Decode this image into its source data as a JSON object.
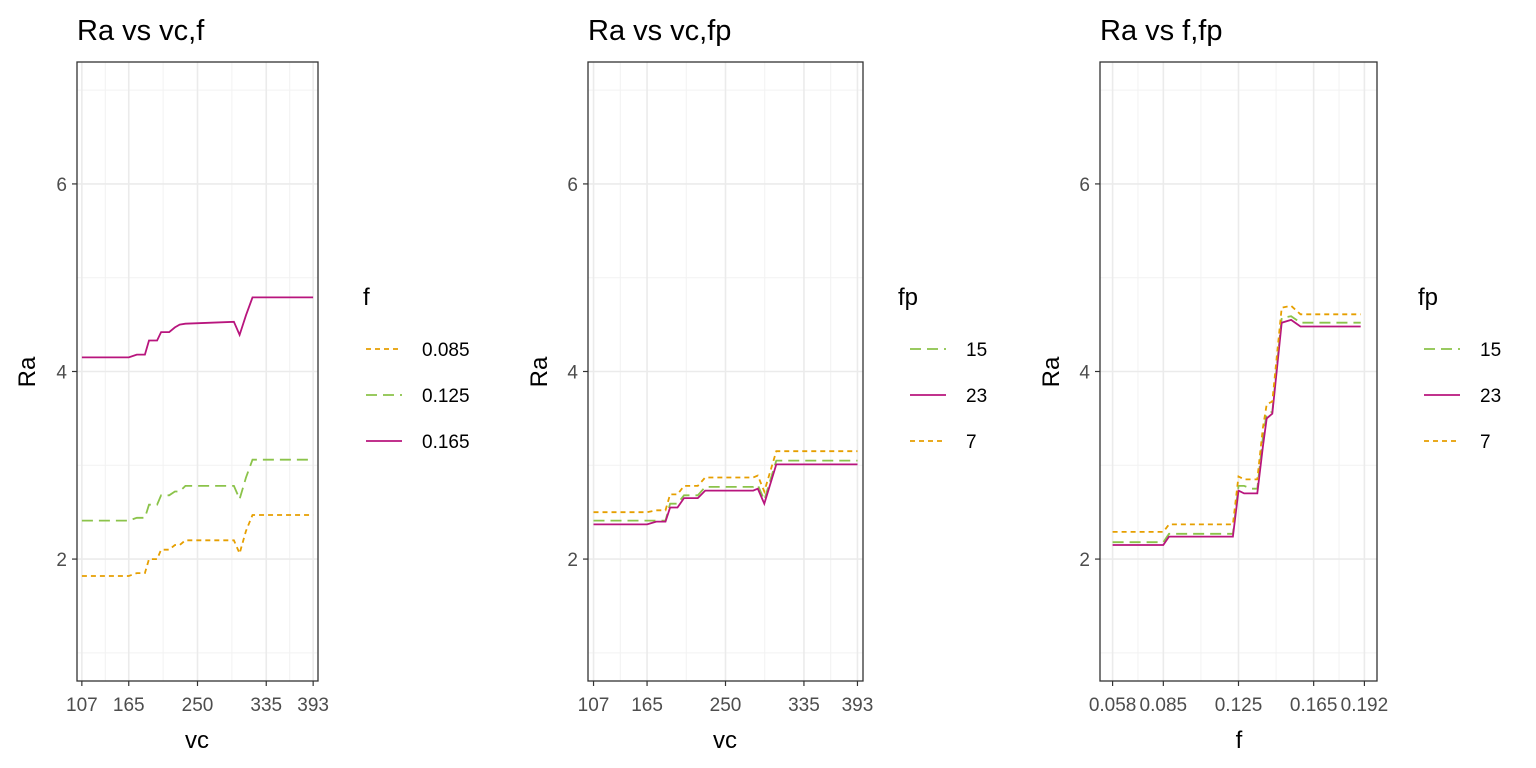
{
  "chart_data": [
    {
      "type": "line",
      "title": "Ra vs vc,f",
      "xlabel": "vc",
      "ylabel": "Ra",
      "xlim": [
        101,
        399
      ],
      "ylim": [
        0.7,
        7.3
      ],
      "x_ticks": [
        107,
        165,
        250,
        335,
        393
      ],
      "x_tick_labels": [
        "107",
        "165",
        "250",
        "335",
        "393"
      ],
      "y_ticks": [
        2,
        4,
        6
      ],
      "y_tick_labels": [
        "2",
        "4",
        "6"
      ],
      "grid": true,
      "legend": {
        "title": "f",
        "position": "right",
        "entries": [
          {
            "label": "0.085",
            "color": "#E69F00",
            "dash": "short"
          },
          {
            "label": "0.125",
            "color": "#8BC34A",
            "dash": "long"
          },
          {
            "label": "0.165",
            "color": "#B8157D",
            "dash": "solid"
          }
        ]
      },
      "series": [
        {
          "name": "0.085",
          "color": "#E69F00",
          "dash": "short",
          "points": [
            [
              107,
              1.82
            ],
            [
              165,
              1.82
            ],
            [
              175,
              1.85
            ],
            [
              185,
              1.85
            ],
            [
              190,
              2.0
            ],
            [
              200,
              2.0
            ],
            [
              205,
              2.1
            ],
            [
              215,
              2.1
            ],
            [
              222,
              2.15
            ],
            [
              228,
              2.15
            ],
            [
              235,
              2.2
            ],
            [
              295,
              2.2
            ],
            [
              302,
              2.06
            ],
            [
              310,
              2.3
            ],
            [
              318,
              2.47
            ],
            [
              393,
              2.47
            ]
          ]
        },
        {
          "name": "0.125",
          "color": "#8BC34A",
          "dash": "long",
          "points": [
            [
              107,
              2.41
            ],
            [
              165,
              2.41
            ],
            [
              175,
              2.44
            ],
            [
              185,
              2.44
            ],
            [
              190,
              2.58
            ],
            [
              200,
              2.58
            ],
            [
              205,
              2.68
            ],
            [
              215,
              2.68
            ],
            [
              222,
              2.72
            ],
            [
              228,
              2.72
            ],
            [
              235,
              2.78
            ],
            [
              295,
              2.78
            ],
            [
              302,
              2.64
            ],
            [
              310,
              2.87
            ],
            [
              318,
              3.06
            ],
            [
              393,
              3.06
            ]
          ]
        },
        {
          "name": "0.165",
          "color": "#B8157D",
          "dash": "solid",
          "points": [
            [
              107,
              4.15
            ],
            [
              165,
              4.15
            ],
            [
              175,
              4.18
            ],
            [
              185,
              4.18
            ],
            [
              190,
              4.33
            ],
            [
              200,
              4.33
            ],
            [
              205,
              4.42
            ],
            [
              215,
              4.42
            ],
            [
              222,
              4.47
            ],
            [
              228,
              4.5
            ],
            [
              235,
              4.51
            ],
            [
              295,
              4.53
            ],
            [
              302,
              4.39
            ],
            [
              310,
              4.6
            ],
            [
              318,
              4.79
            ],
            [
              393,
              4.79
            ]
          ]
        }
      ]
    },
    {
      "type": "line",
      "title": "Ra vs vc,fp",
      "xlabel": "vc",
      "ylabel": "Ra",
      "xlim": [
        101,
        399
      ],
      "ylim": [
        0.7,
        7.3
      ],
      "x_ticks": [
        107,
        165,
        250,
        335,
        393
      ],
      "x_tick_labels": [
        "107",
        "165",
        "250",
        "335",
        "393"
      ],
      "y_ticks": [
        2,
        4,
        6
      ],
      "y_tick_labels": [
        "2",
        "4",
        "6"
      ],
      "grid": true,
      "legend": {
        "title": "fp",
        "position": "right",
        "entries": [
          {
            "label": "15",
            "color": "#8BC34A",
            "dash": "long"
          },
          {
            "label": "23",
            "color": "#B8157D",
            "dash": "solid"
          },
          {
            "label": "7",
            "color": "#E69F00",
            "dash": "short"
          }
        ]
      },
      "series": [
        {
          "name": "15",
          "color": "#8BC34A",
          "dash": "long",
          "points": [
            [
              107,
              2.41
            ],
            [
              165,
              2.41
            ],
            [
              175,
              2.41
            ],
            [
              185,
              2.41
            ],
            [
              190,
              2.59
            ],
            [
              198,
              2.59
            ],
            [
              205,
              2.68
            ],
            [
              220,
              2.68
            ],
            [
              228,
              2.77
            ],
            [
              280,
              2.77
            ],
            [
              285,
              2.79
            ],
            [
              292,
              2.63
            ],
            [
              305,
              3.05
            ],
            [
              393,
              3.05
            ]
          ]
        },
        {
          "name": "23",
          "color": "#B8157D",
          "dash": "solid",
          "points": [
            [
              107,
              2.37
            ],
            [
              165,
              2.37
            ],
            [
              175,
              2.4
            ],
            [
              185,
              2.4
            ],
            [
              190,
              2.55
            ],
            [
              198,
              2.55
            ],
            [
              205,
              2.65
            ],
            [
              220,
              2.65
            ],
            [
              228,
              2.73
            ],
            [
              280,
              2.73
            ],
            [
              285,
              2.75
            ],
            [
              292,
              2.59
            ],
            [
              305,
              3.01
            ],
            [
              393,
              3.01
            ]
          ]
        },
        {
          "name": "7",
          "color": "#E69F00",
          "dash": "short",
          "points": [
            [
              107,
              2.5
            ],
            [
              165,
              2.5
            ],
            [
              175,
              2.52
            ],
            [
              185,
              2.52
            ],
            [
              190,
              2.69
            ],
            [
              198,
              2.69
            ],
            [
              205,
              2.78
            ],
            [
              220,
              2.78
            ],
            [
              228,
              2.87
            ],
            [
              280,
              2.87
            ],
            [
              285,
              2.89
            ],
            [
              292,
              2.72
            ],
            [
              305,
              3.15
            ],
            [
              393,
              3.15
            ]
          ]
        }
      ]
    },
    {
      "type": "line",
      "title": "Ra vs f,fp",
      "xlabel": "f",
      "ylabel": "Ra",
      "xlim": [
        0.0513,
        0.1987
      ],
      "ylim": [
        0.7,
        7.3
      ],
      "x_ticks": [
        0.058,
        0.085,
        0.125,
        0.165,
        0.192
      ],
      "x_tick_labels": [
        "0.058",
        "0.085",
        "0.125",
        "0.165",
        "0.192"
      ],
      "y_ticks": [
        2,
        4,
        6
      ],
      "y_tick_labels": [
        "2",
        "4",
        "6"
      ],
      "grid": true,
      "legend": {
        "title": "fp",
        "position": "right",
        "entries": [
          {
            "label": "15",
            "color": "#8BC34A",
            "dash": "long"
          },
          {
            "label": "23",
            "color": "#B8157D",
            "dash": "solid"
          },
          {
            "label": "7",
            "color": "#E69F00",
            "dash": "short"
          }
        ]
      },
      "series": [
        {
          "name": "15",
          "color": "#8BC34A",
          "dash": "long",
          "points": [
            [
              0.058,
              2.18
            ],
            [
              0.085,
              2.18
            ],
            [
              0.088,
              2.27
            ],
            [
              0.122,
              2.27
            ],
            [
              0.125,
              2.78
            ],
            [
              0.128,
              2.78
            ],
            [
              0.132,
              2.75
            ],
            [
              0.135,
              2.75
            ],
            [
              0.138,
              3.3
            ],
            [
              0.14,
              3.55
            ],
            [
              0.143,
              3.57
            ],
            [
              0.148,
              4.57
            ],
            [
              0.153,
              4.59
            ],
            [
              0.158,
              4.52
            ],
            [
              0.19,
              4.52
            ]
          ]
        },
        {
          "name": "23",
          "color": "#B8157D",
          "dash": "solid",
          "points": [
            [
              0.058,
              2.15
            ],
            [
              0.085,
              2.15
            ],
            [
              0.088,
              2.24
            ],
            [
              0.122,
              2.24
            ],
            [
              0.125,
              2.73
            ],
            [
              0.128,
              2.7
            ],
            [
              0.132,
              2.7
            ],
            [
              0.135,
              2.7
            ],
            [
              0.138,
              3.2
            ],
            [
              0.14,
              3.5
            ],
            [
              0.143,
              3.55
            ],
            [
              0.148,
              4.52
            ],
            [
              0.153,
              4.55
            ],
            [
              0.158,
              4.48
            ],
            [
              0.19,
              4.48
            ]
          ]
        },
        {
          "name": "7",
          "color": "#E69F00",
          "dash": "short",
          "points": [
            [
              0.058,
              2.29
            ],
            [
              0.085,
              2.29
            ],
            [
              0.088,
              2.37
            ],
            [
              0.122,
              2.37
            ],
            [
              0.125,
              2.88
            ],
            [
              0.128,
              2.85
            ],
            [
              0.132,
              2.85
            ],
            [
              0.135,
              2.85
            ],
            [
              0.138,
              3.4
            ],
            [
              0.14,
              3.65
            ],
            [
              0.143,
              3.68
            ],
            [
              0.148,
              4.68
            ],
            [
              0.153,
              4.7
            ],
            [
              0.158,
              4.61
            ],
            [
              0.19,
              4.61
            ]
          ]
        }
      ]
    }
  ]
}
